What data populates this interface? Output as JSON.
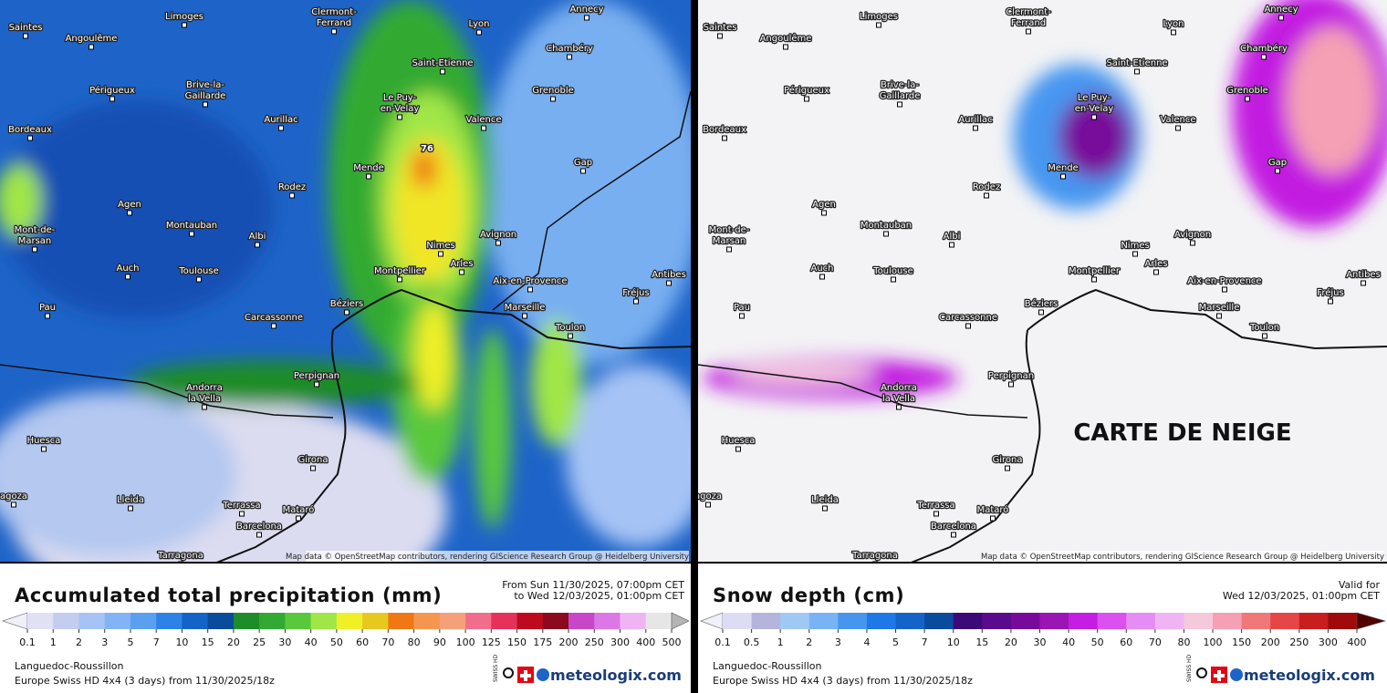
{
  "cities": [
    [
      "Saintes"
    ],
    [
      "Limoges"
    ],
    [
      "Clermont-",
      "Ferrand"
    ],
    [
      "Lyon"
    ],
    [
      "Annecy"
    ],
    [
      "Angoulême"
    ],
    [
      "Saint-Etienne"
    ],
    [
      "Chambéry"
    ],
    [
      "Périgueux"
    ],
    [
      "Brive-la-",
      "Gaillarde"
    ],
    [
      "Le Puy-",
      "en-Velay"
    ],
    [
      "Grenoble"
    ],
    [
      "Aurillac"
    ],
    [
      "Valence"
    ],
    [
      "Bordeaux"
    ],
    [
      "Gap"
    ],
    [
      "Mende"
    ],
    [
      "Rodez"
    ],
    [
      "Agen"
    ],
    [
      "Montauban"
    ],
    [
      "Albi"
    ],
    [
      "Mont-de-",
      "Marsan"
    ],
    [
      "Nimes"
    ],
    [
      "Avignon"
    ],
    [
      "Arles"
    ],
    [
      "Auch"
    ],
    [
      "Toulouse"
    ],
    [
      "Montpellier"
    ],
    [
      "Aix-en-Provence"
    ],
    [
      "Antibes"
    ],
    [
      "Fréjus"
    ],
    [
      "Pau"
    ],
    [
      "Béziers"
    ],
    [
      "Carcassonne"
    ],
    [
      "Marseille"
    ],
    [
      "Toulon"
    ],
    [
      "Perpignan"
    ],
    [
      "Andorra",
      "la Vella"
    ],
    [
      "Huesca"
    ],
    [
      "Girona"
    ],
    [
      "Lleida"
    ],
    [
      "Terrassa"
    ],
    [
      "Mataró"
    ],
    [
      "Barcelona"
    ],
    [
      "Tarragona"
    ],
    [
      "agoza"
    ]
  ],
  "attribution": "Map data © OpenStreetMap contributors, rendering GIScience Research Group @ Heidelberg University",
  "panels": [
    {
      "annotation": "76",
      "title": "Accumulated total precipitation (mm)",
      "period": [
        "From Sun 11/30/2025, 07:00pm CET",
        "to Wed 12/03/2025, 01:00pm CET"
      ],
      "scale": [
        0.1,
        1,
        2,
        3,
        5,
        7,
        10,
        15,
        20,
        25,
        30,
        40,
        50,
        60,
        70,
        80,
        90,
        100,
        125,
        150,
        175,
        200,
        250,
        300,
        400,
        500
      ],
      "colors": [
        "#e1e1f5",
        "#c3cdf0",
        "#a5c3f5",
        "#82b4f5",
        "#5aa0f0",
        "#2d82e6",
        "#1464c8",
        "#0a4b9b",
        "#1e8c28",
        "#32aa32",
        "#5ac83c",
        "#a0e646",
        "#f0f028",
        "#e6c81e",
        "#f07814",
        "#f59650",
        "#f5a078",
        "#f06e8c",
        "#e6325a",
        "#be0a1e",
        "#8c0a1e",
        "#c846c8",
        "#dc78e6",
        "#f0b4f5",
        "#e6e6e6"
      ],
      "arrow_colors": [
        "#f0f0fa",
        "#b4b4b4"
      ],
      "region": "Languedoc-Roussillon",
      "model": "Europe Swiss HD 4x4 (3 days) from 11/30/2025/18z",
      "badge": "SWISS HD",
      "brand": "meteologix.com"
    },
    {
      "annotation": "CARTE DE NEIGE",
      "title": "Snow depth (cm)",
      "period": [
        "Valid for",
        "Wed 12/03/2025, 01:00pm CET"
      ],
      "scale": [
        0.1,
        0.5,
        1,
        2,
        3,
        4,
        5,
        7,
        10,
        15,
        20,
        30,
        40,
        50,
        60,
        70,
        80,
        100,
        150,
        200,
        250,
        300,
        400
      ],
      "colors": [
        "#dcdcf5",
        "#b4b4dc",
        "#a0c8f5",
        "#78b4f5",
        "#4696f0",
        "#1e78e6",
        "#1464c8",
        "#0a4ba0",
        "#3c0a78",
        "#5a0a8c",
        "#780a9b",
        "#9b14b4",
        "#c31ee1",
        "#dc50f0",
        "#e68cf5",
        "#f0b4f5",
        "#f5c8dc",
        "#f5a0b4",
        "#f07878",
        "#e64646",
        "#c81e1e",
        "#a00a0a"
      ],
      "arrow_colors": [
        "#f0f0fa",
        "#500000"
      ],
      "region": "Languedoc-Roussillon",
      "model": "Europe Swiss HD 4x4 (3 days) from 11/30/2025/18z",
      "badge": "SWISS HD",
      "brand": "meteologix.com"
    }
  ]
}
